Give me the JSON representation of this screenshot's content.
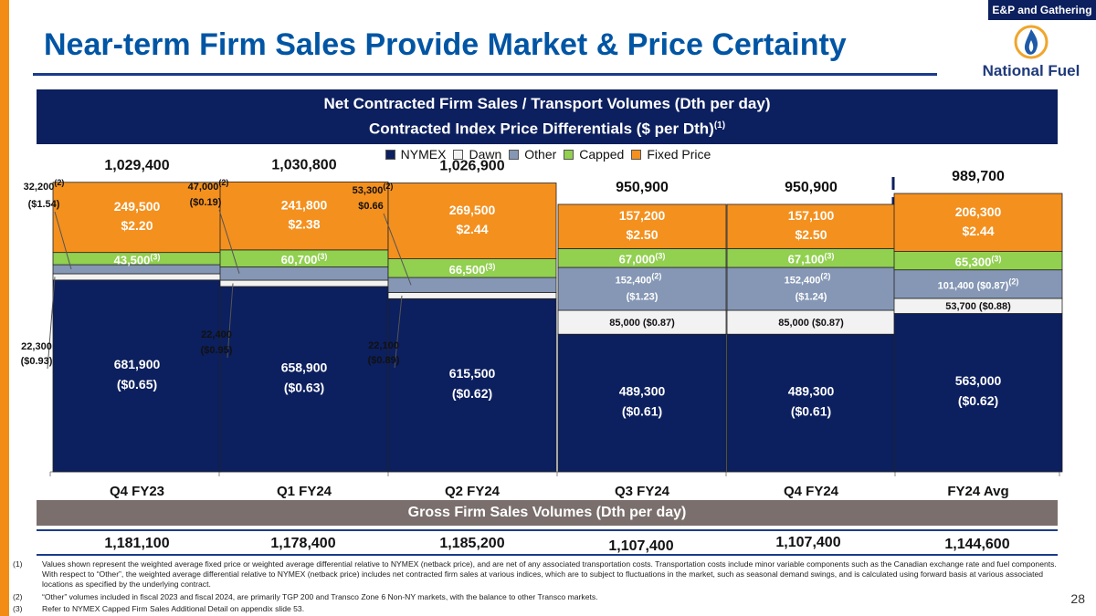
{
  "section_tag": "E&P and Gathering",
  "slide_title": "Near-term Firm Sales Provide Market & Price Certainty",
  "logo_text": "National Fuel",
  "page_number": "28",
  "colors": {
    "accent": "#f28c14",
    "navy": "#0c1f5e",
    "title_blue": "#0055a4",
    "nymex": "#0c1f5e",
    "dawn": "#f2f2f2",
    "other": "#8597b5",
    "capped": "#92d050",
    "fixed": "#f4901e",
    "gross_box": "#7a6f6d"
  },
  "header_box": {
    "line1": "Net Contracted Firm Sales / Transport Volumes (Dth per day)",
    "line2": "Contracted Index Price Differentials ($ per Dth)",
    "line2_sup": "(1)"
  },
  "legend": [
    {
      "label": "NYMEX",
      "color": "#0c1f5e"
    },
    {
      "label": "Dawn",
      "color": "#f2f2f2"
    },
    {
      "label": "Other",
      "color": "#8597b5"
    },
    {
      "label": "Capped",
      "color": "#92d050"
    },
    {
      "label": "Fixed Price",
      "color": "#f4901e"
    }
  ],
  "chart_data": {
    "type": "bar",
    "stacked": true,
    "title": "Net Contracted Firm Sales / Transport Volumes (Dth per day)",
    "categories": [
      "Q4 FY23",
      "Q1 FY24",
      "Q2 FY24",
      "Q3 FY24",
      "Q4 FY24",
      "FY24 Avg"
    ],
    "ylim": [
      0,
      1100000
    ],
    "series": [
      {
        "name": "NYMEX",
        "values": [
          681900,
          658900,
          615500,
          489300,
          489300,
          563000
        ],
        "labels": [
          "681,900",
          "658,900",
          "615,500",
          "489,300",
          "489,300",
          "563,000"
        ],
        "prices": [
          "($0.65)",
          "($0.63)",
          "($0.62)",
          "($0.61)",
          "($0.61)",
          "($0.62)"
        ]
      },
      {
        "name": "Dawn",
        "values": [
          22300,
          22400,
          22100,
          85000,
          85000,
          53700
        ],
        "labels": [
          "22,300",
          "22,400",
          "22,100",
          "85,000 ($0.87)",
          "85,000  ($0.87)",
          "53,700 ($0.88)"
        ],
        "prices": [
          "($0.93)",
          "($0.95)",
          "($0.89)",
          "",
          "",
          ""
        ]
      },
      {
        "name": "Other",
        "values": [
          32200,
          47000,
          53300,
          152400,
          152400,
          101400
        ],
        "labels": [
          "32,200",
          "47,000",
          "53,300",
          "152,400",
          "152,400",
          "101,400 ($0.87)"
        ],
        "prices": [
          "($1.54)",
          "($0.19)",
          "$0.66",
          "($1.23)",
          "($1.24)",
          ""
        ]
      },
      {
        "name": "Capped",
        "values": [
          43500,
          60700,
          66500,
          67000,
          67100,
          65300
        ],
        "labels": [
          "43,500",
          "60,700",
          "66,500",
          "67,000",
          "67,100",
          "65,300"
        ]
      },
      {
        "name": "Fixed Price",
        "values": [
          249500,
          241800,
          269500,
          157200,
          157100,
          206300
        ],
        "labels": [
          "249,500",
          "241,800",
          "269,500",
          "157,200",
          "157,100",
          "206,300"
        ],
        "prices": [
          "$2.20",
          "$2.38",
          "$2.44",
          "$2.50",
          "$2.50",
          "$2.44"
        ]
      }
    ],
    "totals": [
      "1,029,400",
      "1,030,800",
      "1,026,900",
      "950,900",
      "950,900",
      "989,700"
    ],
    "footnote_marks": {
      "other": "(2)",
      "capped": "(3)"
    }
  },
  "gross_box": {
    "title": "Gross Firm Sales Volumes (Dth per day)",
    "values": [
      "1,181,100",
      "1,178,400",
      "1,185,200",
      "1,107,400",
      "1,107,400",
      "1,144,600"
    ]
  },
  "footnotes": [
    {
      "n": "(1)",
      "text": "Values shown represent the weighted average fixed price or weighted average differential relative to NYMEX (netback price), and are net of any associated transportation costs.  Transportation costs include minor variable components such as the Canadian exchange rate and fuel components. With respect to “Other”, the weighted average differential relative to NYMEX (netback price) includes net contracted firm sales at various indices, which are to subject to fluctuations in the market, such as seasonal demand swings, and is calculated using forward basis at various associated locations as specified by the underlying contract."
    },
    {
      "n": "(2)",
      "text": "“Other” volumes included in fiscal 2023 and fiscal 2024, are primarily TGP 200 and Transco Zone 6 Non-NY markets, with the balance to other Transco markets."
    },
    {
      "n": "(3)",
      "text": "Refer to NYMEX Capped Firm Sales Additional Detail on appendix slide 53."
    }
  ]
}
